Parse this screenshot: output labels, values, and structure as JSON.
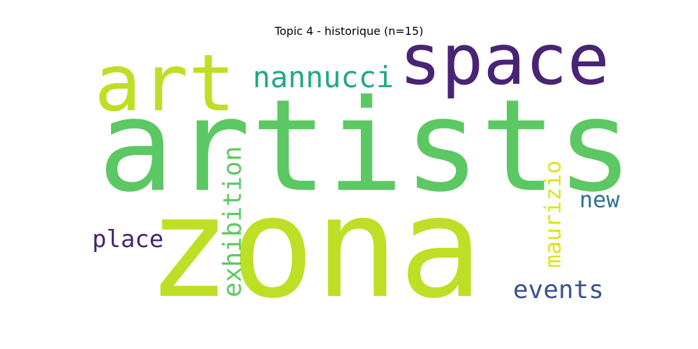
{
  "chart_data": {
    "type": "wordcloud",
    "title": "Topic 4 - historique (n=15)",
    "words": [
      {
        "text": "artists",
        "weight": 1.0,
        "orientation": "horizontal",
        "color": "#5cc863"
      },
      {
        "text": "zona",
        "weight": 0.95,
        "orientation": "horizontal",
        "color": "#bddf26"
      },
      {
        "text": "art",
        "weight": 0.6,
        "orientation": "horizontal",
        "color": "#bddf26"
      },
      {
        "text": "space",
        "weight": 0.55,
        "orientation": "horizontal",
        "color": "#482475"
      },
      {
        "text": "nannucci",
        "weight": 0.3,
        "orientation": "horizontal",
        "color": "#22a884"
      },
      {
        "text": "exhibition",
        "weight": 0.28,
        "orientation": "vertical",
        "color": "#5cc863"
      },
      {
        "text": "maurizio",
        "weight": 0.26,
        "orientation": "vertical",
        "color": "#dde318"
      },
      {
        "text": "events",
        "weight": 0.24,
        "orientation": "horizontal",
        "color": "#3b528b"
      },
      {
        "text": "place",
        "weight": 0.22,
        "orientation": "horizontal",
        "color": "#482475"
      },
      {
        "text": "new",
        "weight": 0.2,
        "orientation": "horizontal",
        "color": "#2c728e"
      }
    ]
  }
}
